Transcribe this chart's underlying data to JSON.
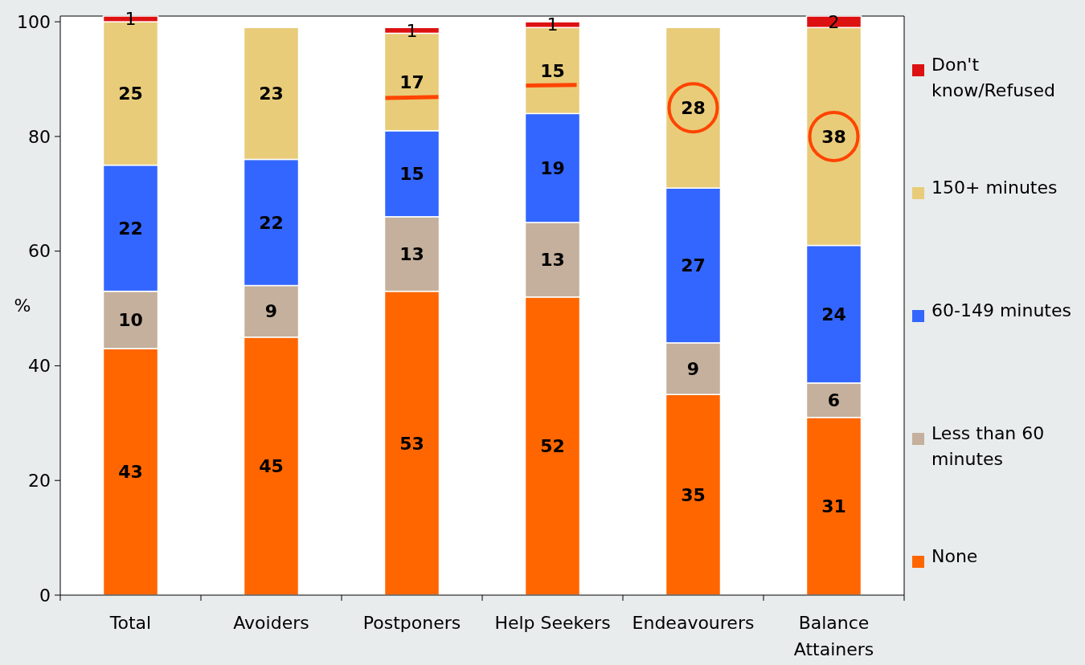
{
  "chart_data": {
    "type": "bar",
    "stacked": true,
    "categories": [
      "Total",
      "Avoiders",
      "Postponers",
      "Help Seekers",
      "Endeavourers",
      "Balance Attainers"
    ],
    "ylabel": "%",
    "ylim": [
      0,
      101
    ],
    "yticks": [
      0,
      20,
      40,
      60,
      80,
      100
    ],
    "grid": false,
    "legend": "right",
    "data_labels": true,
    "series": [
      {
        "name": "None",
        "color": "#ff6600",
        "values": [
          43,
          45,
          53,
          52,
          35,
          31
        ]
      },
      {
        "name": "Less than 60 minutes",
        "color": "#c4b09c",
        "values": [
          10,
          9,
          13,
          13,
          9,
          6
        ]
      },
      {
        "name": "60-149 minutes",
        "color": "#3366ff",
        "values": [
          22,
          22,
          15,
          19,
          27,
          24
        ]
      },
      {
        "name": "150+ minutes",
        "color": "#e8cc7a",
        "values": [
          25,
          23,
          17,
          15,
          28,
          38
        ]
      },
      {
        "name": "Don't know/Refused",
        "color": "#dd1111",
        "values": [
          1,
          null,
          1,
          1,
          null,
          2
        ]
      }
    ]
  }
}
